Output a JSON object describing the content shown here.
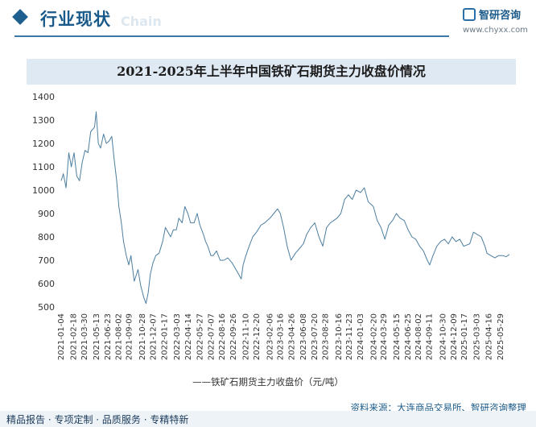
{
  "header": {
    "section_title": "行业现状",
    "section_subtitle": "Chain",
    "logo_name": "智研咨询",
    "logo_url": "www.chyxx.com"
  },
  "colors": {
    "accent": "#1f5f8f",
    "line": "#4d7fa0",
    "title_band": "#dfe9f3"
  },
  "chart_data": {
    "type": "line",
    "title": "2021-2025年上半年中国铁矿石期货主力收盘价情况",
    "xlabel": "",
    "ylabel": "",
    "ylim": [
      500,
      1400
    ],
    "yticks": [
      500,
      600,
      700,
      800,
      900,
      1000,
      1100,
      1200,
      1300,
      1400
    ],
    "grid": false,
    "legend_position": "bottom-center",
    "x_ticks": [
      "2021-01-04",
      "2021-02-18",
      "2021-03-30",
      "2021-05-13",
      "2021-06-23",
      "2021-08-02",
      "2021-09-09",
      "2021-10-28",
      "2021-12-07",
      "2022-01-17",
      "2022-03-03",
      "2022-04-14",
      "2022-05-27",
      "2022-07-07",
      "2022-08-16",
      "2022-09-26",
      "2022-11-10",
      "2022-12-20",
      "2023-02-06",
      "2023-03-16",
      "2023-04-26",
      "2023-06-08",
      "2023-07-20",
      "2023-08-28",
      "2023-10-16",
      "2023-11-23",
      "2024-01-03",
      "2024-02-20",
      "2024-03-29",
      "2024-05-15",
      "2024-06-25",
      "2024-08-02",
      "2024-09-11",
      "2024-10-30",
      "2024-12-09",
      "2025-01-17",
      "2025-03-03",
      "2025-04-16",
      "2025-05-29"
    ],
    "series": [
      {
        "name": "铁矿石期货主力收盘价（元/吨）",
        "x": [
          "2021-01-04",
          "2021-01-12",
          "2021-01-22",
          "2021-02-01",
          "2021-02-10",
          "2021-02-20",
          "2021-03-02",
          "2021-03-12",
          "2021-03-22",
          "2021-04-01",
          "2021-04-12",
          "2021-04-22",
          "2021-05-06",
          "2021-05-12",
          "2021-05-20",
          "2021-05-28",
          "2021-06-08",
          "2021-06-18",
          "2021-06-28",
          "2021-07-08",
          "2021-07-16",
          "2021-07-26",
          "2021-08-03",
          "2021-08-12",
          "2021-08-20",
          "2021-08-30",
          "2021-09-08",
          "2021-09-16",
          "2021-09-28",
          "2021-10-12",
          "2021-10-22",
          "2021-11-02",
          "2021-11-10",
          "2021-11-18",
          "2021-11-26",
          "2021-12-06",
          "2021-12-16",
          "2021-12-28",
          "2022-01-10",
          "2022-01-20",
          "2022-02-08",
          "2022-02-18",
          "2022-03-01",
          "2022-03-10",
          "2022-03-22",
          "2022-04-01",
          "2022-04-12",
          "2022-04-22",
          "2022-05-05",
          "2022-05-16",
          "2022-05-26",
          "2022-06-08",
          "2022-06-16",
          "2022-06-24",
          "2022-07-05",
          "2022-07-14",
          "2022-07-26",
          "2022-08-08",
          "2022-08-22",
          "2022-09-05",
          "2022-09-20",
          "2022-10-10",
          "2022-10-24",
          "2022-10-31",
          "2022-11-10",
          "2022-11-22",
          "2022-12-05",
          "2022-12-19",
          "2023-01-04",
          "2023-01-18",
          "2023-02-06",
          "2023-02-20",
          "2023-03-06",
          "2023-03-16",
          "2023-03-28",
          "2023-04-10",
          "2023-04-24",
          "2023-05-10",
          "2023-05-25",
          "2023-06-08",
          "2023-06-20",
          "2023-07-05",
          "2023-07-20",
          "2023-08-04",
          "2023-08-18",
          "2023-09-01",
          "2023-09-15",
          "2023-10-09",
          "2023-10-23",
          "2023-11-06",
          "2023-11-20",
          "2023-12-04",
          "2023-12-18",
          "2024-01-03",
          "2024-01-17",
          "2024-01-31",
          "2024-02-19",
          "2024-03-04",
          "2024-03-18",
          "2024-04-01",
          "2024-04-15",
          "2024-04-29",
          "2024-05-13",
          "2024-05-27",
          "2024-06-11",
          "2024-06-25",
          "2024-07-09",
          "2024-07-23",
          "2024-08-06",
          "2024-08-20",
          "2024-09-03",
          "2024-09-12",
          "2024-09-24",
          "2024-10-08",
          "2024-10-22",
          "2024-11-05",
          "2024-11-19",
          "2024-12-03",
          "2024-12-17",
          "2024-12-31",
          "2025-01-14",
          "2025-02-05",
          "2025-02-19",
          "2025-03-05",
          "2025-03-19",
          "2025-04-02",
          "2025-04-09",
          "2025-04-23",
          "2025-05-08",
          "2025-05-22",
          "2025-06-05",
          "2025-06-19",
          "2025-06-30"
        ],
        "values": [
          1040,
          1070,
          1010,
          1160,
          1100,
          1160,
          1060,
          1040,
          1120,
          1170,
          1160,
          1250,
          1270,
          1335,
          1200,
          1180,
          1240,
          1200,
          1210,
          1230,
          1140,
          1040,
          930,
          860,
          780,
          720,
          680,
          720,
          610,
          660,
          590,
          540,
          515,
          560,
          640,
          690,
          720,
          730,
          780,
          840,
          800,
          830,
          830,
          880,
          860,
          930,
          900,
          860,
          860,
          900,
          850,
          810,
          780,
          760,
          720,
          720,
          740,
          700,
          700,
          710,
          690,
          650,
          620,
          680,
          720,
          760,
          800,
          820,
          850,
          860,
          880,
          900,
          920,
          900,
          840,
          760,
          700,
          730,
          750,
          770,
          810,
          840,
          860,
          800,
          760,
          840,
          860,
          880,
          900,
          960,
          980,
          960,
          1000,
          990,
          1010,
          950,
          930,
          870,
          840,
          790,
          850,
          870,
          900,
          880,
          870,
          830,
          800,
          790,
          760,
          740,
          700,
          680,
          720,
          760,
          780,
          790,
          770,
          800,
          780,
          790,
          760,
          770,
          820,
          810,
          800,
          760,
          730,
          720,
          710,
          720,
          720,
          715,
          725
        ]
      }
    ]
  },
  "legend": "——铁矿石期货主力收盘价（元/吨）",
  "source": "资料来源：大连商品交易所、智研咨询整理",
  "footer": "精品报告 · 专项定制 · 品质服务 · 专精特新"
}
